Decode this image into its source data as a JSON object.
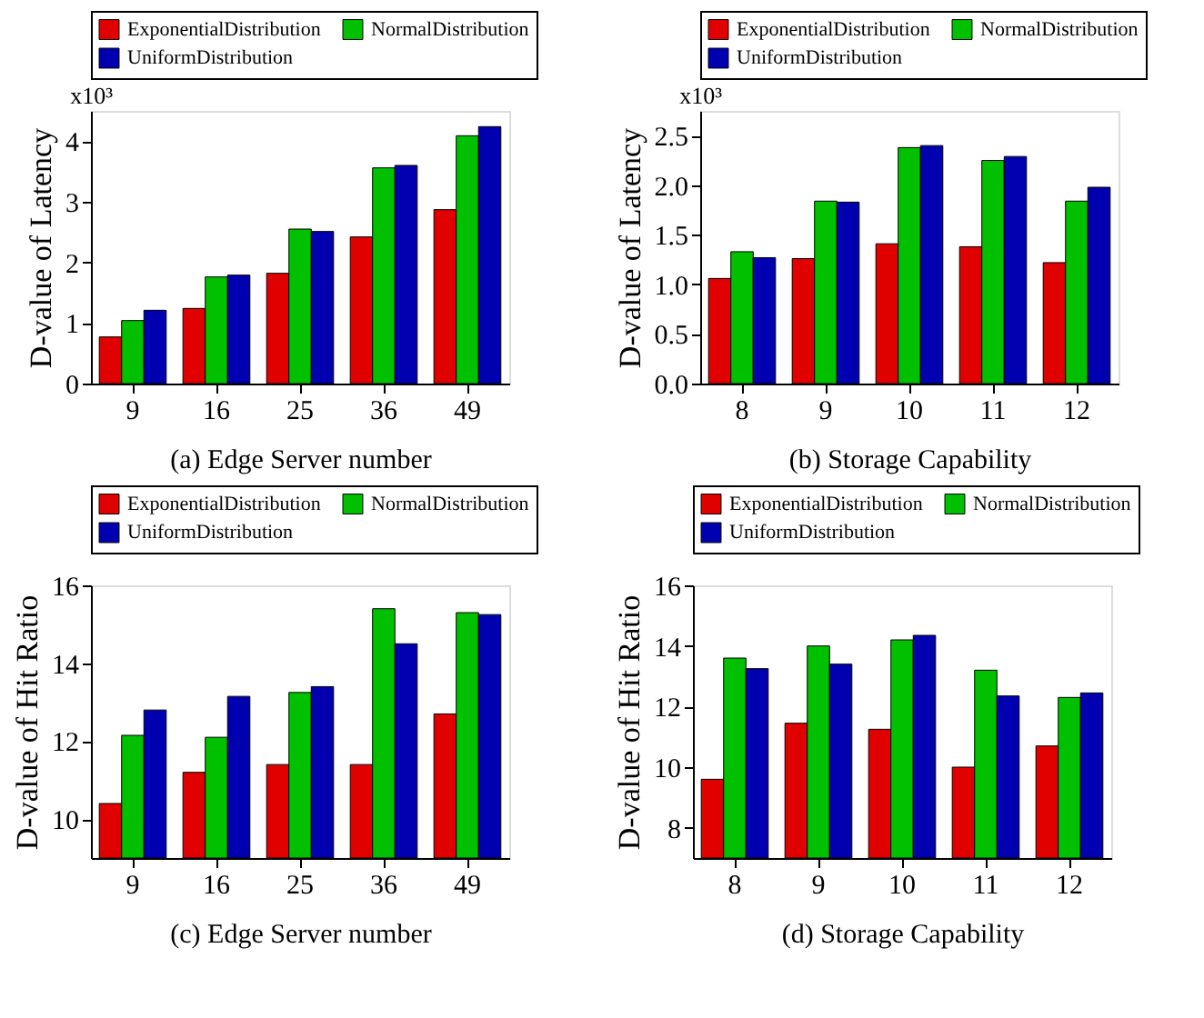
{
  "chart_data": [
    {
      "type": "bar",
      "xlabel": "(a) Edge Server number",
      "ylabel": "D-value of Latency",
      "annotations": [
        "x10³"
      ],
      "categories": [
        "9",
        "16",
        "25",
        "36",
        "49"
      ],
      "ylim": [
        0,
        4.5
      ],
      "yticks": [
        0,
        1,
        2,
        3,
        4
      ],
      "grid": false,
      "legend": "top",
      "series": [
        {
          "name": "ExponentialDistribution",
          "color": "#e00000",
          "values": [
            0.77,
            1.24,
            1.82,
            2.42,
            2.87
          ]
        },
        {
          "name": "NormalDistribution",
          "color": "#00c000",
          "values": [
            1.04,
            1.76,
            2.55,
            3.56,
            4.09
          ]
        },
        {
          "name": "UniformDistribution",
          "color": "#0000b0",
          "values": [
            1.21,
            1.79,
            2.51,
            3.6,
            4.24
          ]
        }
      ]
    },
    {
      "type": "bar",
      "xlabel": "(b) Storage Capability",
      "ylabel": "D-value of Latency",
      "annotations": [
        "x10³"
      ],
      "categories": [
        "8",
        "9",
        "10",
        "11",
        "12"
      ],
      "ylim": [
        0,
        2.75
      ],
      "yticks": [
        {
          "value": 0,
          "label": "0.0"
        },
        0.5,
        {
          "value": 1,
          "label": "1.0"
        },
        1.5,
        {
          "value": 2,
          "label": "2.0"
        },
        2.5
      ],
      "grid": false,
      "legend": "top",
      "series": [
        {
          "name": "ExponentialDistribution",
          "color": "#e00000",
          "values": [
            1.06,
            1.26,
            1.41,
            1.38,
            1.22
          ]
        },
        {
          "name": "NormalDistribution",
          "color": "#00c000",
          "values": [
            1.33,
            1.84,
            2.38,
            2.25,
            1.84
          ]
        },
        {
          "name": "UniformDistribution",
          "color": "#0000b0",
          "values": [
            1.27,
            1.83,
            2.4,
            2.29,
            1.98
          ]
        }
      ]
    },
    {
      "type": "bar",
      "xlabel": "(c) Edge Server number",
      "ylabel": "D-value of Hit Ratio",
      "categories": [
        "9",
        "16",
        "25",
        "36",
        "49"
      ],
      "ylim": [
        9,
        16
      ],
      "yticks": [
        10,
        12,
        14,
        16
      ],
      "grid": false,
      "legend": "top",
      "series": [
        {
          "name": "ExponentialDistribution",
          "color": "#e00000",
          "values": [
            10.4,
            11.2,
            11.4,
            11.4,
            12.7
          ]
        },
        {
          "name": "NormalDistribution",
          "color": "#00c000",
          "values": [
            12.15,
            12.1,
            13.25,
            15.4,
            15.3
          ]
        },
        {
          "name": "UniformDistribution",
          "color": "#0000b0",
          "values": [
            12.8,
            13.15,
            13.4,
            14.5,
            15.25
          ]
        }
      ]
    },
    {
      "type": "bar",
      "xlabel": "(d) Storage Capability",
      "ylabel": "D-value of Hit Ratio",
      "categories": [
        "8",
        "9",
        "10",
        "11",
        "12"
      ],
      "ylim": [
        7,
        16
      ],
      "yticks": [
        8,
        10,
        12,
        14,
        16
      ],
      "grid": false,
      "legend": "top",
      "series": [
        {
          "name": "ExponentialDistribution",
          "color": "#e00000",
          "values": [
            9.6,
            11.45,
            11.25,
            10.0,
            10.7
          ]
        },
        {
          "name": "NormalDistribution",
          "color": "#00c000",
          "values": [
            13.6,
            14.0,
            14.2,
            13.2,
            12.3
          ]
        },
        {
          "name": "UniformDistribution",
          "color": "#0000b0",
          "values": [
            13.25,
            13.4,
            14.35,
            12.35,
            12.45
          ]
        }
      ]
    }
  ]
}
